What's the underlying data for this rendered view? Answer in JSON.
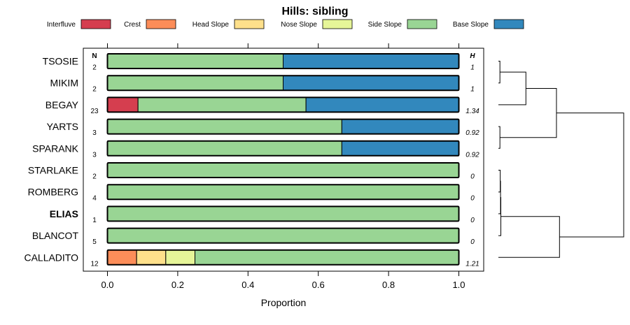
{
  "chart_data": {
    "type": "bar",
    "orientation": "horizontal-stacked",
    "title": "Hills: sibling",
    "xlabel": "Proportion",
    "ylabel": "",
    "xlim": [
      0,
      1
    ],
    "x_ticks": [
      "0.0",
      "0.2",
      "0.4",
      "0.6",
      "0.8",
      "1.0"
    ],
    "x_tick_values": [
      0,
      0.2,
      0.4,
      0.6,
      0.8,
      1.0
    ],
    "n_header": "N",
    "h_header": "H",
    "legend_position": "top",
    "legend": [
      {
        "name": "Interfluve",
        "color": "#D53E4F"
      },
      {
        "name": "Crest",
        "color": "#FC8D59"
      },
      {
        "name": "Head Slope",
        "color": "#FEE08B"
      },
      {
        "name": "Nose Slope",
        "color": "#E6F598"
      },
      {
        "name": "Side Slope",
        "color": "#99D594"
      },
      {
        "name": "Base Slope",
        "color": "#3288BD"
      }
    ],
    "categories": [
      "TSOSIE",
      "MIKIM",
      "BEGAY",
      "YARTS",
      "SPARANK",
      "STARLAKE",
      "ROMBERG",
      "ELIAS",
      "BLANCOT",
      "CALLADITO"
    ],
    "highlighted": "ELIAS",
    "N": [
      "2",
      "2",
      "23",
      "3",
      "3",
      "2",
      "4",
      "1",
      "5",
      "12"
    ],
    "H": [
      "1",
      "1",
      "1.34",
      "0.92",
      "0.92",
      "0",
      "0",
      "0",
      "0",
      "1.21"
    ],
    "series": [
      {
        "name": "Interfluve",
        "values": [
          0,
          0,
          0.087,
          0,
          0,
          0,
          0,
          0,
          0,
          0
        ]
      },
      {
        "name": "Crest",
        "values": [
          0,
          0,
          0,
          0,
          0,
          0,
          0,
          0,
          0,
          0.083
        ]
      },
      {
        "name": "Head Slope",
        "values": [
          0,
          0,
          0,
          0,
          0,
          0,
          0,
          0,
          0,
          0.083
        ]
      },
      {
        "name": "Nose Slope",
        "values": [
          0,
          0,
          0,
          0,
          0,
          0,
          0,
          0,
          0,
          0.083
        ]
      },
      {
        "name": "Side Slope",
        "values": [
          0.5,
          0.5,
          0.478,
          0.667,
          0.667,
          1,
          1,
          1,
          1,
          0.75
        ]
      },
      {
        "name": "Base Slope",
        "values": [
          0.5,
          0.5,
          0.435,
          0.333,
          0.333,
          0,
          0,
          0,
          0,
          0
        ]
      }
    ],
    "dendrogram": {
      "leaves": [
        "TSOSIE",
        "MIKIM",
        "BEGAY",
        "YARTS",
        "SPARANK",
        "STARLAKE",
        "ROMBERG",
        "ELIAS",
        "BLANCOT",
        "CALLADITO"
      ],
      "merges": [
        {
          "a": "L0",
          "b": "L1",
          "h": 0.05
        },
        {
          "a": "M0",
          "b": "L2",
          "h": 0.9
        },
        {
          "a": "L3",
          "b": "L4",
          "h": 0.05
        },
        {
          "a": "M1",
          "b": "M2",
          "h": 1.9
        },
        {
          "a": "L5",
          "b": "L6",
          "h": 0.06
        },
        {
          "a": "M4",
          "b": "L7",
          "h": 0.07
        },
        {
          "a": "M5",
          "b": "L8",
          "h": 0.08
        },
        {
          "a": "M6",
          "b": "L9",
          "h": 2.0
        },
        {
          "a": "M3",
          "b": "M7",
          "h": 4.1
        }
      ]
    }
  }
}
